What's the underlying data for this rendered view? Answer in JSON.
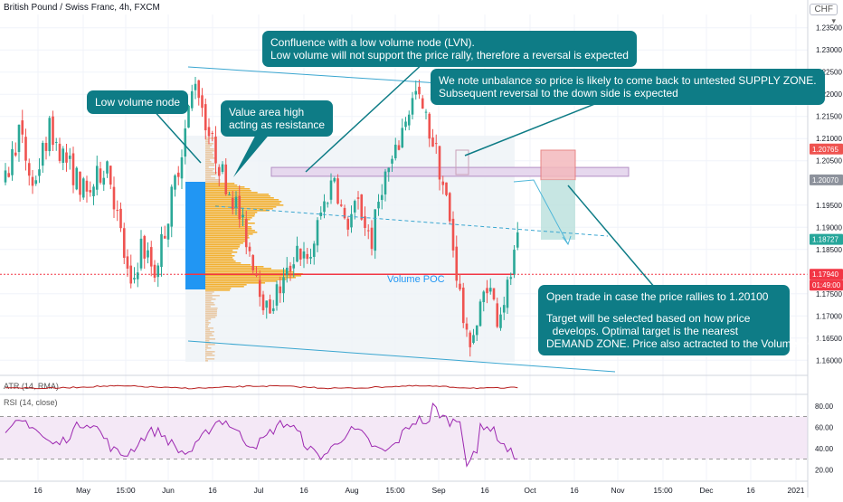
{
  "header": {
    "symbol_title": "British Pound / Swiss Franc, 4h, FXCM",
    "currency": "CHF",
    "currency_caret": "▾"
  },
  "colors": {
    "up": "#2aa897",
    "down": "#ef5350",
    "callout": "#0e7c86",
    "poc": "#f23645",
    "profile": "#f2b134",
    "value_area": "#2196f3",
    "channel": "#3aa6d0",
    "supply": "#b38fc4",
    "rsi_line": "#9c27b0"
  },
  "callouts": {
    "lvn": [
      "Low volume node"
    ],
    "vah": [
      "Value area high",
      "acting as resistance"
    ],
    "confluence": [
      "Confluence with a low volume node (LVN).",
      "Low volume will not support the price rally, therefore a reversal is expected"
    ],
    "unbalance": [
      "We note unbalance so price is likely to come back to untested SUPPLY ZONE.",
      "Subsequent reversal to the down side is expected"
    ],
    "trade": [
      "Open trade in case the price rallies to 1.20100",
      "",
      "Target will be selected based on how price",
      "  develops. Optimal target is the nearest",
      "DEMAND ZONE. Price also actracted to the Volume POC"
    ]
  },
  "chart_data": [
    {
      "type": "candlestick",
      "title": "British Pound / Swiss Franc, 4h, FXCM",
      "ylim": [
        1.157,
        1.238
      ],
      "y_ticks": [
        "1.23500",
        "1.23000",
        "1.22500",
        "1.22000",
        "1.21500",
        "1.21000",
        "1.20500",
        "1.19500",
        "1.19000",
        "1.18500",
        "1.17500",
        "1.17000",
        "1.16500",
        "1.16000"
      ],
      "x_ticks": [
        "16",
        "May",
        "15:00",
        "Jun",
        "16",
        "Jul",
        "16",
        "Aug",
        "15:00",
        "Sep",
        "16",
        "Oct",
        "16",
        "Nov",
        "15:00",
        "Dec",
        "16",
        "2021"
      ],
      "price_labels": [
        {
          "text": "1.20765",
          "value": 1.20765,
          "color": "#ef5350"
        },
        {
          "text": "1.20070",
          "value": 1.2007,
          "color": "#8d929c"
        },
        {
          "text": "1.18727",
          "value": 1.18727,
          "color": "#26a69a"
        },
        {
          "text": "1.17940",
          "value": 1.1794,
          "color": "#f23645"
        }
      ],
      "countdown": "01:49:00",
      "poc_label": "Volume POC",
      "poc_price": 1.1794,
      "supply_zone": [
        1.2015,
        1.2035
      ],
      "path": [
        [
          0,
          1.2
        ],
        [
          4,
          1.212
        ],
        [
          8,
          1.199
        ],
        [
          13,
          1.212
        ],
        [
          18,
          1.205
        ],
        [
          24,
          1.197
        ],
        [
          30,
          1.205
        ],
        [
          34,
          1.188
        ],
        [
          37,
          1.175
        ],
        [
          40,
          1.186
        ],
        [
          44,
          1.18
        ],
        [
          48,
          1.193
        ],
        [
          52,
          1.208
        ],
        [
          56,
          1.224
        ],
        [
          60,
          1.211
        ],
        [
          64,
          1.202
        ],
        [
          68,
          1.195
        ],
        [
          70,
          1.19
        ],
        [
          74,
          1.18
        ],
        [
          77,
          1.171
        ],
        [
          80,
          1.175
        ],
        [
          83,
          1.179
        ],
        [
          86,
          1.186
        ],
        [
          89,
          1.181
        ],
        [
          93,
          1.193
        ],
        [
          97,
          1.202
        ],
        [
          100,
          1.19
        ],
        [
          104,
          1.195
        ],
        [
          108,
          1.187
        ],
        [
          111,
          1.2
        ],
        [
          115,
          1.206
        ],
        [
          118,
          1.215
        ],
        [
          121,
          1.22
        ],
        [
          124,
          1.214
        ],
        [
          127,
          1.207
        ],
        [
          130,
          1.196
        ],
        [
          133,
          1.18
        ],
        [
          136,
          1.164
        ],
        [
          139,
          1.168
        ],
        [
          142,
          1.178
        ],
        [
          145,
          1.17
        ],
        [
          148,
          1.176
        ],
        [
          151,
          1.186
        ]
      ]
    },
    {
      "type": "line",
      "title": "ATR (14, RMA)"
    },
    {
      "type": "line",
      "title": "RSI (14, close)",
      "ylim": [
        10,
        90
      ],
      "y_ticks": [
        "80.00",
        "60.00",
        "40.00",
        "20.00"
      ],
      "bands": [
        30,
        70
      ]
    }
  ]
}
